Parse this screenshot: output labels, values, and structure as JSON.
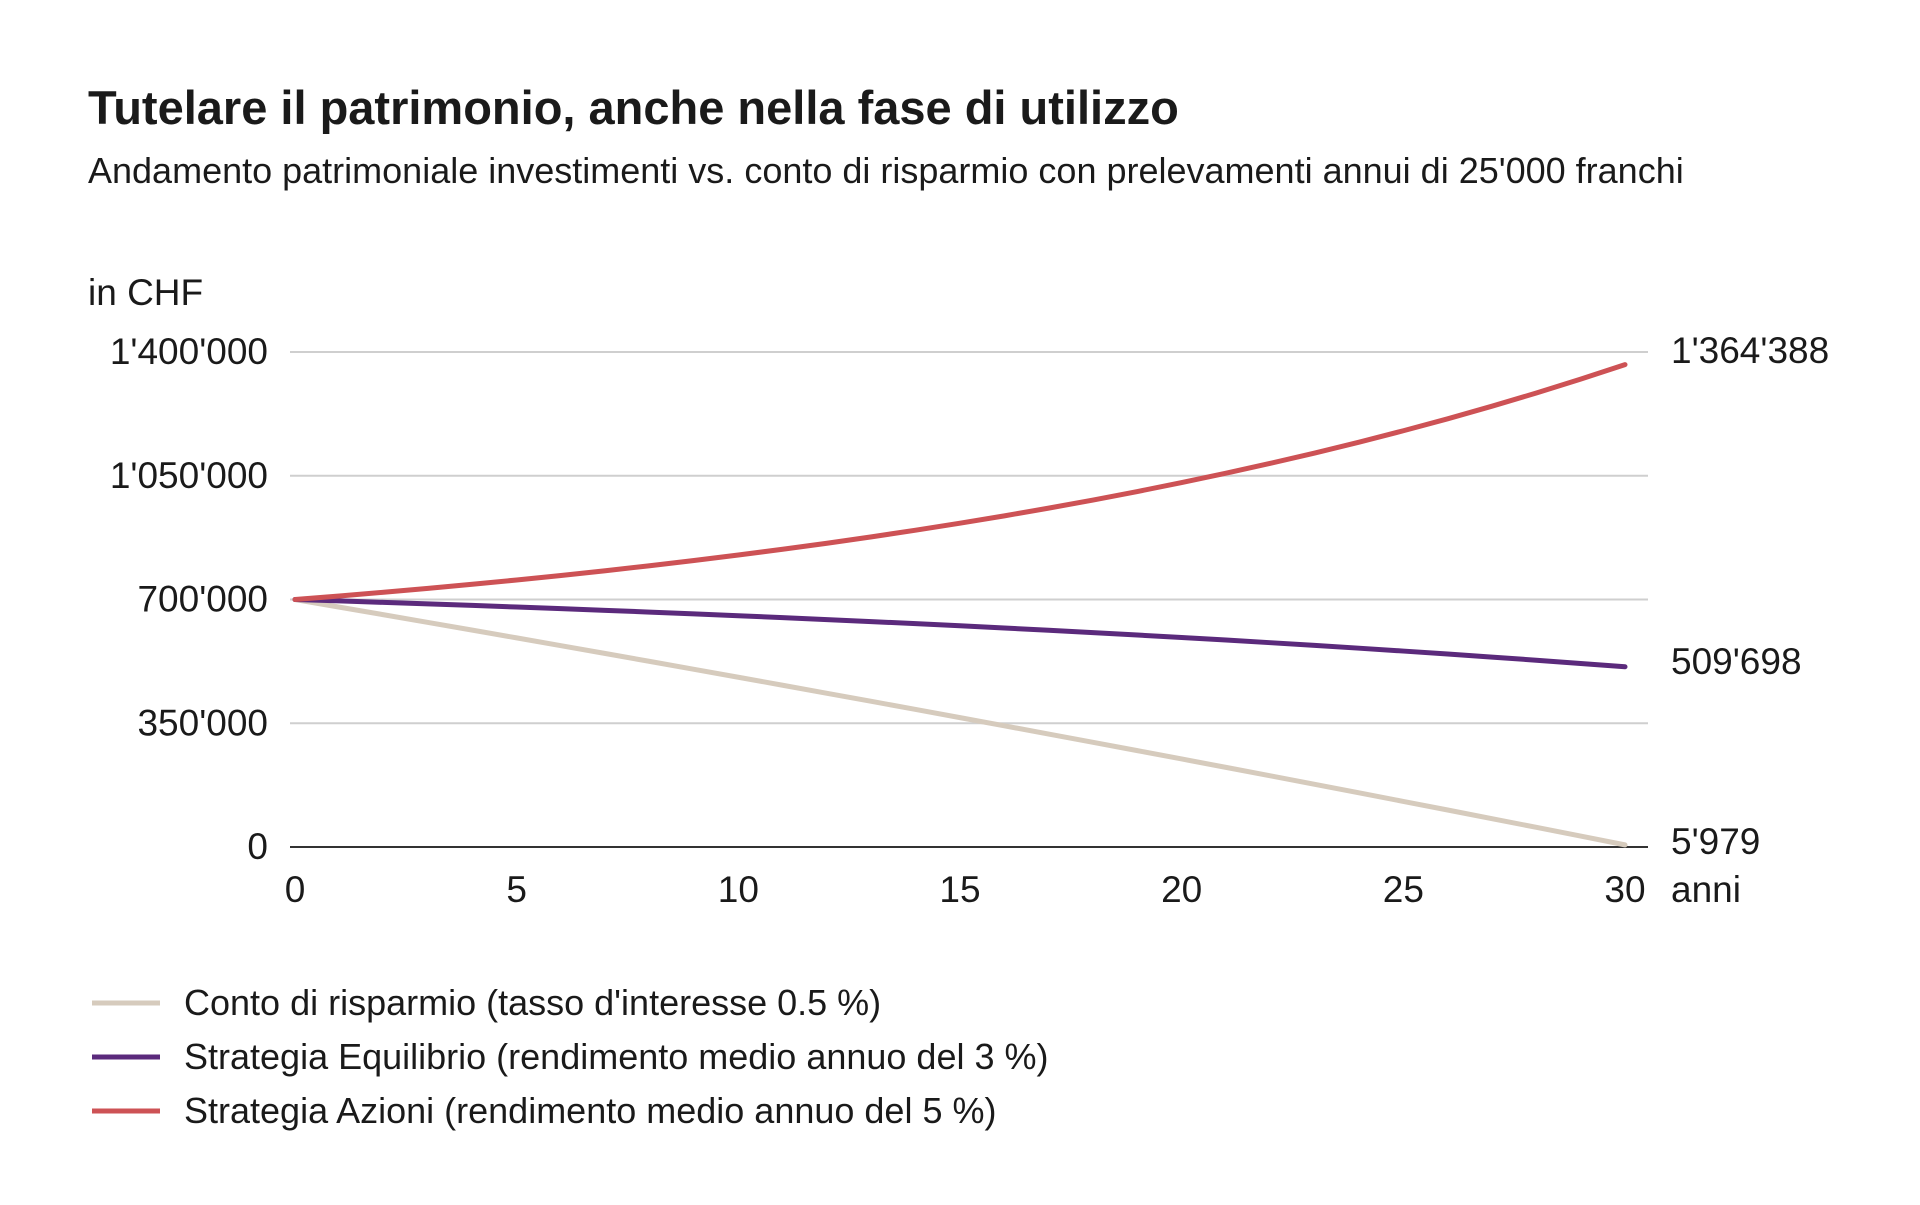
{
  "chart_data": {
    "type": "line",
    "title": "Tutelare il patrimonio, anche nella fase di utilizzo",
    "subtitle": "Andamento patrimoniale investimenti vs. conto di risparmio con prelevamenti annui di 25'000 franchi",
    "ylabel": "in CHF",
    "xlabel": "anni",
    "xlim": [
      0,
      30
    ],
    "ylim": [
      0,
      1400000
    ],
    "x_ticks": [
      "0",
      "5",
      "10",
      "15",
      "20",
      "25",
      "30"
    ],
    "y_ticks": [
      "0",
      "350'000",
      "700'000",
      "1'050'000",
      "1'400'000"
    ],
    "y_tick_values": [
      0,
      350000,
      700000,
      1050000,
      1400000
    ],
    "grid": "horizontal",
    "legend_position": "bottom-left",
    "x": [
      0,
      1,
      2,
      3,
      4,
      5,
      6,
      7,
      8,
      9,
      10,
      11,
      12,
      13,
      14,
      15,
      16,
      17,
      18,
      19,
      20,
      21,
      22,
      23,
      24,
      25,
      26,
      27,
      28,
      29,
      30
    ],
    "series": [
      {
        "name": "Conto di risparmio (tasso d'interesse 0.5 %)",
        "color": "#d6cbbd",
        "end_label": "5'979",
        "values": [
          700000,
          678500,
          656893,
          635177,
          613353,
          591420,
          569377,
          547224,
          524960,
          502585,
          480098,
          457498,
          434785,
          411959,
          389019,
          365964,
          342794,
          319508,
          296106,
          272587,
          248950,
          225195,
          201321,
          177328,
          153215,
          128981,
          104626,
          80149,
          55550,
          30828,
          5979
        ]
      },
      {
        "name": "Strategia Equilibrio (rendimento medio annuo del 3 %)",
        "color": "#5b2a7c",
        "end_label": "509'698",
        "values": [
          700000,
          696000,
          691880,
          687636,
          683265,
          678763,
          674126,
          669350,
          664431,
          659364,
          654145,
          648769,
          643232,
          637529,
          631655,
          625605,
          619373,
          612954,
          606343,
          599533,
          592519,
          585295,
          577854,
          570190,
          562296,
          554165,
          545790,
          537164,
          528279,
          519127,
          509698
        ]
      },
      {
        "name": "Strategia Azioni (rendimento medio annuo del 5 %)",
        "color": "#cd5255",
        "end_label": "1'364'388",
        "values": [
          700000,
          710000,
          720500,
          731525,
          743101,
          755256,
          768019,
          781420,
          795491,
          810266,
          825779,
          842068,
          859171,
          877130,
          895987,
          915786,
          936575,
          958404,
          981324,
          1005390,
          1030660,
          1057193,
          1085053,
          1114306,
          1145021,
          1177272,
          1211136,
          1246693,
          1284028,
          1323229,
          1364388
        ]
      }
    ]
  }
}
